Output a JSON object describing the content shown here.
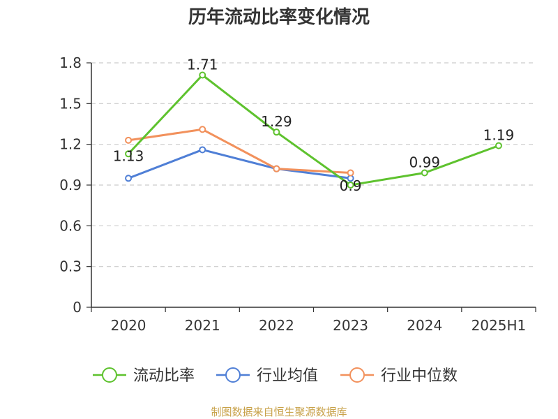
{
  "chart_data": {
    "type": "line",
    "title": "历年流动比率变化情况",
    "categories": [
      "2020",
      "2021",
      "2022",
      "2023",
      "2024",
      "2025H1"
    ],
    "ylim": [
      0,
      1.8
    ],
    "yticks": [
      "0",
      "0.3",
      "0.6",
      "0.9",
      "1.2",
      "1.5",
      "1.8"
    ],
    "grid": true,
    "legend_position": "bottom",
    "series": [
      {
        "name": "流动比率",
        "color": "#5ec22e",
        "values": [
          1.13,
          1.71,
          1.29,
          0.9,
          0.99,
          1.19
        ],
        "labels": [
          "1.13",
          "1.71",
          "1.29",
          "0.9",
          "0.99",
          "1.19"
        ]
      },
      {
        "name": "行业均值",
        "color": "#4f7fd6",
        "values": [
          0.95,
          1.16,
          1.02,
          0.95,
          null,
          null
        ]
      },
      {
        "name": "行业中位数",
        "color": "#f2915c",
        "values": [
          1.23,
          1.31,
          1.02,
          0.99,
          null,
          null
        ]
      }
    ]
  },
  "source": "制图数据来自恒生聚源数据库"
}
